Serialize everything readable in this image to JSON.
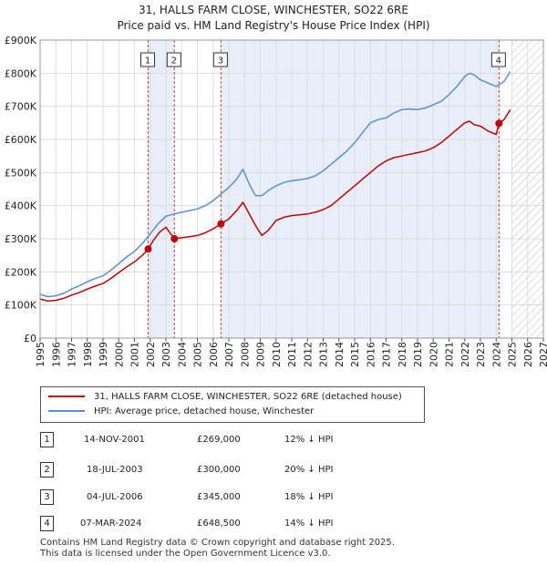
{
  "title_line1": "31, HALLS FARM CLOSE, WINCHESTER, SO22 6RE",
  "title_line2": "Price paid vs. HM Land Registry's House Price Index (HPI)",
  "chart_data": {
    "type": "line",
    "title": "31, HALLS FARM CLOSE, WINCHESTER, SO22 6RE — Price paid vs. HM Land Registry's House Price Index (HPI)",
    "xlim": [
      1995,
      2027
    ],
    "ylim": [
      0,
      900000
    ],
    "yticks": [
      0,
      100000,
      200000,
      300000,
      400000,
      500000,
      600000,
      700000,
      800000,
      900000
    ],
    "ytick_labels": [
      "£0",
      "£100K",
      "£200K",
      "£300K",
      "£400K",
      "£500K",
      "£600K",
      "£700K",
      "£800K",
      "£900K"
    ],
    "xticks": [
      1995,
      1996,
      1997,
      1998,
      1999,
      2000,
      2001,
      2002,
      2003,
      2004,
      2005,
      2006,
      2007,
      2008,
      2009,
      2010,
      2011,
      2012,
      2013,
      2014,
      2015,
      2016,
      2017,
      2018,
      2019,
      2020,
      2021,
      2022,
      2023,
      2024,
      2025,
      2026,
      2027
    ],
    "shaded_periods": [
      [
        2001.87,
        2003.54
      ],
      [
        2006.5,
        2024.18
      ]
    ],
    "forecast_start": 2025.0,
    "series": [
      {
        "name": "HPI: Average price, detached house, Winchester",
        "color": "#5b8fd0",
        "x": [
          1995,
          1995.5,
          1996,
          1996.5,
          1997,
          1997.5,
          1998,
          1998.5,
          1999,
          1999.5,
          2000,
          2000.5,
          2001,
          2001.5,
          2002,
          2002.5,
          2003,
          2003.5,
          2004,
          2004.5,
          2005,
          2005.5,
          2006,
          2006.5,
          2007,
          2007.5,
          2007.9,
          2008.3,
          2008.7,
          2009.1,
          2009.5,
          2010,
          2010.5,
          2011,
          2011.5,
          2012,
          2012.5,
          2013,
          2013.5,
          2014,
          2014.5,
          2015,
          2015.5,
          2016,
          2016.5,
          2017,
          2017.5,
          2018,
          2018.5,
          2019,
          2019.5,
          2020,
          2020.5,
          2021,
          2021.5,
          2022,
          2022.3,
          2022.6,
          2023,
          2023.5,
          2024,
          2024.5,
          2024.9
        ],
        "y": [
          132000,
          125000,
          128000,
          135000,
          148000,
          158000,
          170000,
          180000,
          188000,
          205000,
          225000,
          245000,
          262000,
          285000,
          315000,
          345000,
          368000,
          375000,
          380000,
          385000,
          390000,
          400000,
          415000,
          435000,
          455000,
          480000,
          510000,
          465000,
          430000,
          430000,
          445000,
          460000,
          470000,
          475000,
          478000,
          482000,
          490000,
          505000,
          525000,
          545000,
          565000,
          590000,
          620000,
          650000,
          660000,
          665000,
          680000,
          690000,
          692000,
          690000,
          695000,
          705000,
          715000,
          735000,
          760000,
          790000,
          800000,
          795000,
          780000,
          770000,
          760000,
          775000,
          805000
        ]
      },
      {
        "name": "31, HALLS FARM CLOSE, WINCHESTER, SO22 6RE (detached house)",
        "color": "#c00000",
        "x": [
          1995,
          1995.5,
          1996,
          1996.5,
          1997,
          1997.5,
          1998,
          1998.5,
          1999,
          1999.5,
          2000,
          2000.5,
          2001,
          2001.5,
          2001.87,
          2002.2,
          2002.6,
          2003.0,
          2003.3,
          2003.54,
          2004,
          2004.5,
          2005,
          2005.5,
          2006,
          2006.5,
          2007,
          2007.5,
          2007.9,
          2008.3,
          2008.7,
          2009.1,
          2009.5,
          2010,
          2010.5,
          2011,
          2011.5,
          2012,
          2012.5,
          2013,
          2013.5,
          2014,
          2014.5,
          2015,
          2015.5,
          2016,
          2016.5,
          2017,
          2017.5,
          2018,
          2018.5,
          2019,
          2019.5,
          2020,
          2020.5,
          2021,
          2021.5,
          2022,
          2022.3,
          2022.6,
          2023,
          2023.5,
          2024,
          2024.18,
          2024.5,
          2024.9
        ],
        "y": [
          118000,
          112000,
          114000,
          120000,
          130000,
          138000,
          148000,
          157000,
          165000,
          180000,
          198000,
          215000,
          230000,
          250000,
          269000,
          295000,
          320000,
          335000,
          315000,
          300000,
          303000,
          306000,
          310000,
          318000,
          330000,
          345000,
          360000,
          385000,
          410000,
          375000,
          340000,
          310000,
          325000,
          355000,
          365000,
          370000,
          372000,
          375000,
          380000,
          388000,
          400000,
          420000,
          440000,
          460000,
          480000,
          500000,
          520000,
          535000,
          545000,
          550000,
          555000,
          560000,
          565000,
          575000,
          590000,
          610000,
          630000,
          650000,
          655000,
          645000,
          640000,
          625000,
          615000,
          648500,
          660000,
          690000
        ]
      }
    ],
    "sales": [
      {
        "num": "1",
        "x": 2001.87,
        "value": 269000,
        "date": "14-NOV-2001",
        "price": "£269,000",
        "hpi": "12% ↓ HPI"
      },
      {
        "num": "2",
        "x": 2003.54,
        "value": 300000,
        "date": "18-JUL-2003",
        "price": "£300,000",
        "hpi": "20% ↓ HPI"
      },
      {
        "num": "3",
        "x": 2006.5,
        "value": 345000,
        "date": "04-JUL-2006",
        "price": "£345,000",
        "hpi": "18% ↓ HPI"
      },
      {
        "num": "4",
        "x": 2024.18,
        "value": 648500,
        "date": "07-MAR-2024",
        "price": "£648,500",
        "hpi": "14% ↓ HPI"
      }
    ]
  },
  "legend": {
    "property_label": "31, HALLS FARM CLOSE, WINCHESTER, SO22 6RE (detached house)",
    "hpi_label": "HPI: Average price, detached house, Winchester",
    "property_color": "#c00000",
    "hpi_color": "#5b8fd0"
  },
  "footer": {
    "line1": "Contains HM Land Registry data © Crown copyright and database right 2025.",
    "line2": "This data is licensed under the Open Government Licence v3.0."
  }
}
